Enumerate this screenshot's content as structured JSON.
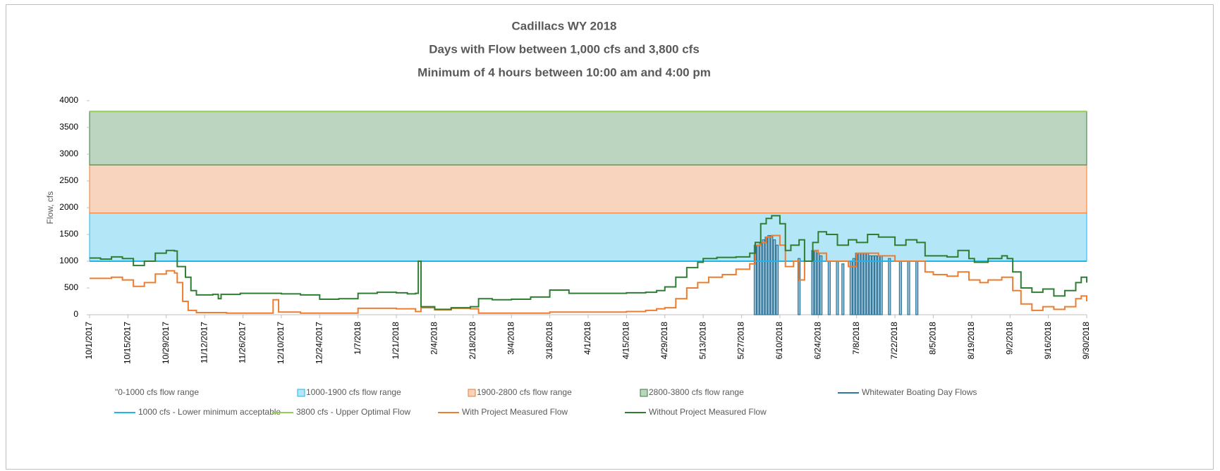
{
  "chart_data": {
    "type": "line",
    "title": "Cadillacs WY 2018",
    "subtitles": [
      "Days with Flow between 1,000 cfs and 3,800 cfs",
      "Minimum of 4 hours between 10:00 am and 4:00 pm"
    ],
    "ylabel": "Flow, cfs",
    "ylim": [
      0,
      4000
    ],
    "yticks": [
      0,
      500,
      1000,
      1500,
      2000,
      2500,
      3000,
      3500,
      4000
    ],
    "xlim": [
      "2017-10-01",
      "2018-09-30"
    ],
    "xticks": [
      {
        "value": "2017-10-01",
        "label": "10/1/2017"
      },
      {
        "value": "2017-10-15",
        "label": "10/15/2017"
      },
      {
        "value": "2017-10-29",
        "label": "10/29/2017"
      },
      {
        "value": "2017-11-12",
        "label": "11/12/2017"
      },
      {
        "value": "2017-11-26",
        "label": "11/26/2017"
      },
      {
        "value": "2017-12-10",
        "label": "12/10/2017"
      },
      {
        "value": "2017-12-24",
        "label": "12/24/2017"
      },
      {
        "value": "2018-01-07",
        "label": "1/7/2018"
      },
      {
        "value": "2018-01-21",
        "label": "1/21/2018"
      },
      {
        "value": "2018-02-04",
        "label": "2/4/2018"
      },
      {
        "value": "2018-02-18",
        "label": "2/18/2018"
      },
      {
        "value": "2018-03-04",
        "label": "3/4/2018"
      },
      {
        "value": "2018-03-18",
        "label": "3/18/2018"
      },
      {
        "value": "2018-04-01",
        "label": "4/1/2018"
      },
      {
        "value": "2018-04-15",
        "label": "4/15/2018"
      },
      {
        "value": "2018-04-29",
        "label": "4/29/2018"
      },
      {
        "value": "2018-05-13",
        "label": "5/13/2018"
      },
      {
        "value": "2018-05-27",
        "label": "5/27/2018"
      },
      {
        "value": "2018-06-10",
        "label": "6/10/2018"
      },
      {
        "value": "2018-06-24",
        "label": "6/24/2018"
      },
      {
        "value": "2018-07-08",
        "label": "7/8/2018"
      },
      {
        "value": "2018-07-22",
        "label": "7/22/2018"
      },
      {
        "value": "2018-08-05",
        "label": "8/5/2018"
      },
      {
        "value": "2018-08-19",
        "label": "8/19/2018"
      },
      {
        "value": "2018-09-02",
        "label": "9/2/2018"
      },
      {
        "value": "2018-09-16",
        "label": "9/16/2018"
      },
      {
        "value": "2018-09-30",
        "label": "9/30/2018"
      }
    ],
    "bands": [
      {
        "name": "\"0-1000 cfs flow range",
        "color": "none",
        "stroke": "none",
        "value": 1000
      },
      {
        "name": "1000-1900 cfs flow range",
        "color": "#b3e6f7",
        "stroke": "#1fb5e8",
        "value": 900
      },
      {
        "name": "1900-2800 cfs flow range",
        "color": "#f8d3bd",
        "stroke": "#ed7d31",
        "value": 900
      },
      {
        "name": "2800-3800 cfs flow range",
        "color": "#bcd5c0",
        "stroke": "#3a7d3c",
        "value": 1000
      }
    ],
    "series": [
      {
        "name": "Whitewater Boating Day Flows",
        "type": "bar",
        "color": "#31779a",
        "x": [
          "2018-06-01",
          "2018-06-02",
          "2018-06-03",
          "2018-06-04",
          "2018-06-05",
          "2018-06-06",
          "2018-06-07",
          "2018-06-08",
          "2018-06-09",
          "2018-06-17",
          "2018-06-22",
          "2018-06-23",
          "2018-06-24",
          "2018-06-25",
          "2018-06-28",
          "2018-07-01",
          "2018-07-03",
          "2018-07-06",
          "2018-07-07",
          "2018-07-08",
          "2018-07-09",
          "2018-07-10",
          "2018-07-11",
          "2018-07-12",
          "2018-07-13",
          "2018-07-14",
          "2018-07-15",
          "2018-07-16",
          "2018-07-17",
          "2018-07-20",
          "2018-07-24",
          "2018-07-27",
          "2018-07-30"
        ],
        "values": [
          1300,
          1300,
          1350,
          1400,
          1450,
          1480,
          1480,
          1400,
          1300,
          1050,
          1200,
          1200,
          1150,
          1100,
          1000,
          1000,
          950,
          1000,
          1050,
          1150,
          1150,
          1150,
          1150,
          1150,
          1100,
          1100,
          1100,
          1100,
          1100,
          1050,
          1000,
          1000,
          1000
        ]
      },
      {
        "name": "1000 cfs - Lower minimum acceptable",
        "type": "hline",
        "color": "#1fb5e8",
        "value": 1000
      },
      {
        "name": "3800 cfs - Upper Optimal Flow",
        "type": "hline",
        "color": "#92d050",
        "value": 3800
      },
      {
        "name": "With Project Measured Flow",
        "type": "line",
        "color": "#ed7d31",
        "x": [
          "2017-10-01",
          "2017-10-09",
          "2017-10-13",
          "2017-10-17",
          "2017-10-21",
          "2017-10-25",
          "2017-10-29",
          "2017-11-01",
          "2017-11-02",
          "2017-11-04",
          "2017-11-06",
          "2017-11-09",
          "2017-11-20",
          "2017-12-05",
          "2017-12-07",
          "2017-12-09",
          "2017-12-17",
          "2017-12-31",
          "2018-01-07",
          "2018-01-21",
          "2018-01-25",
          "2018-01-28",
          "2018-01-30",
          "2018-02-04",
          "2018-02-10",
          "2018-02-17",
          "2018-02-20",
          "2018-03-04",
          "2018-03-18",
          "2018-04-01",
          "2018-04-15",
          "2018-04-22",
          "2018-04-26",
          "2018-04-29",
          "2018-05-03",
          "2018-05-07",
          "2018-05-11",
          "2018-05-15",
          "2018-05-20",
          "2018-05-25",
          "2018-05-30",
          "2018-06-01",
          "2018-06-03",
          "2018-06-05",
          "2018-06-07",
          "2018-06-10",
          "2018-06-12",
          "2018-06-15",
          "2018-06-17",
          "2018-06-19",
          "2018-06-22",
          "2018-06-24",
          "2018-06-27",
          "2018-07-01",
          "2018-07-05",
          "2018-07-08",
          "2018-07-12",
          "2018-07-16",
          "2018-07-22",
          "2018-07-26",
          "2018-07-30",
          "2018-08-02",
          "2018-08-05",
          "2018-08-10",
          "2018-08-14",
          "2018-08-18",
          "2018-08-22",
          "2018-08-25",
          "2018-08-30",
          "2018-09-01",
          "2018-09-03",
          "2018-09-06",
          "2018-09-10",
          "2018-09-14",
          "2018-09-18",
          "2018-09-22",
          "2018-09-26",
          "2018-09-28",
          "2018-09-30"
        ],
        "values": [
          680,
          700,
          650,
          530,
          600,
          760,
          820,
          780,
          600,
          250,
          80,
          40,
          30,
          30,
          280,
          50,
          30,
          30,
          120,
          110,
          110,
          60,
          130,
          90,
          120,
          110,
          30,
          30,
          50,
          50,
          60,
          80,
          110,
          130,
          300,
          500,
          600,
          700,
          750,
          850,
          950,
          1300,
          1350,
          1450,
          1480,
          1300,
          900,
          1000,
          650,
          1000,
          1200,
          1150,
          1000,
          1000,
          900,
          1150,
          1150,
          1100,
          1000,
          1000,
          1000,
          800,
          750,
          720,
          800,
          650,
          600,
          650,
          700,
          700,
          450,
          200,
          80,
          150,
          100,
          150,
          300,
          350,
          250
        ]
      },
      {
        "name": "Without Project Measured Flow",
        "type": "line",
        "color": "#2e7d32",
        "x": [
          "2017-10-01",
          "2017-10-05",
          "2017-10-09",
          "2017-10-13",
          "2017-10-17",
          "2017-10-21",
          "2017-10-25",
          "2017-10-29",
          "2017-11-01",
          "2017-11-02",
          "2017-11-05",
          "2017-11-07",
          "2017-11-09",
          "2017-11-15",
          "2017-11-17",
          "2017-11-18",
          "2017-11-25",
          "2017-12-05",
          "2017-12-10",
          "2017-12-17",
          "2017-12-24",
          "2017-12-31",
          "2018-01-07",
          "2018-01-14",
          "2018-01-21",
          "2018-01-25",
          "2018-01-28",
          "2018-01-29",
          "2018-01-30",
          "2018-02-04",
          "2018-02-10",
          "2018-02-17",
          "2018-02-20",
          "2018-02-25",
          "2018-03-04",
          "2018-03-11",
          "2018-03-18",
          "2018-03-25",
          "2018-04-01",
          "2018-04-08",
          "2018-04-15",
          "2018-04-22",
          "2018-04-26",
          "2018-04-29",
          "2018-05-03",
          "2018-05-07",
          "2018-05-11",
          "2018-05-13",
          "2018-05-18",
          "2018-05-25",
          "2018-05-30",
          "2018-06-01",
          "2018-06-03",
          "2018-06-05",
          "2018-06-07",
          "2018-06-10",
          "2018-06-12",
          "2018-06-14",
          "2018-06-17",
          "2018-06-19",
          "2018-06-22",
          "2018-06-24",
          "2018-06-27",
          "2018-07-01",
          "2018-07-05",
          "2018-07-08",
          "2018-07-12",
          "2018-07-16",
          "2018-07-22",
          "2018-07-26",
          "2018-07-30",
          "2018-08-02",
          "2018-08-05",
          "2018-08-10",
          "2018-08-14",
          "2018-08-18",
          "2018-08-20",
          "2018-08-25",
          "2018-08-30",
          "2018-09-01",
          "2018-09-03",
          "2018-09-06",
          "2018-09-10",
          "2018-09-14",
          "2018-09-18",
          "2018-09-22",
          "2018-09-26",
          "2018-09-28",
          "2018-09-30"
        ],
        "values": [
          1060,
          1040,
          1080,
          1050,
          920,
          1000,
          1150,
          1200,
          1190,
          900,
          700,
          450,
          370,
          380,
          300,
          380,
          400,
          400,
          390,
          370,
          290,
          300,
          400,
          420,
          410,
          390,
          400,
          1000,
          150,
          100,
          130,
          150,
          300,
          280,
          290,
          330,
          460,
          400,
          400,
          400,
          410,
          420,
          450,
          520,
          700,
          880,
          980,
          1050,
          1070,
          1080,
          1150,
          1350,
          1700,
          1800,
          1850,
          1700,
          1200,
          1300,
          1400,
          1000,
          1350,
          1550,
          1500,
          1300,
          1400,
          1350,
          1500,
          1450,
          1300,
          1400,
          1350,
          1100,
          1100,
          1080,
          1200,
          1050,
          980,
          1050,
          1100,
          1050,
          800,
          500,
          420,
          480,
          350,
          450,
          600,
          700,
          600
        ]
      }
    ]
  }
}
